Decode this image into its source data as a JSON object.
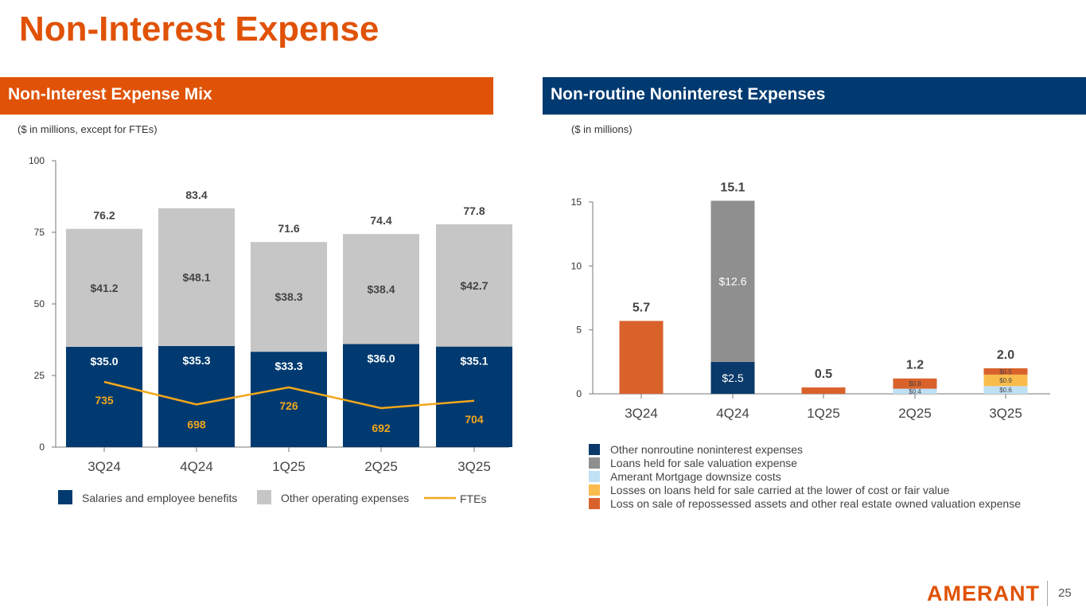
{
  "title": "Non-Interest Expense",
  "left_header": "Non-Interest Expense Mix",
  "right_header": "Non-routine Noninterest Expenses",
  "left_subtitle": "($ in millions, except for FTEs)",
  "right_subtitle": "($ in millions)",
  "logo": "AMERANT",
  "page_number": "25",
  "colors": {
    "orange": "#e05206",
    "navy": "#003a70"
  },
  "chart_data": [
    {
      "type": "bar",
      "stacked": true,
      "categories": [
        "3Q24",
        "4Q24",
        "1Q25",
        "2Q25",
        "3Q25"
      ],
      "ylim": [
        0,
        100
      ],
      "yticks": [
        0,
        25,
        50,
        75,
        100
      ],
      "legend": "bottom",
      "series": [
        {
          "name": "Salaries and employee benefits",
          "color": "#003a70",
          "values": [
            35.0,
            35.3,
            33.3,
            36.0,
            35.1
          ],
          "labels": [
            "$35.0",
            "$35.3",
            "$33.3",
            "$36.0",
            "$35.1"
          ]
        },
        {
          "name": "Other operating expenses",
          "color": "#c6c6c6",
          "values": [
            41.2,
            48.1,
            38.3,
            38.4,
            42.7
          ],
          "labels": [
            "$41.2",
            "$48.1",
            "$38.3",
            "$38.4",
            "$42.7"
          ]
        }
      ],
      "totals": [
        "76.2",
        "83.4",
        "71.6",
        "74.4",
        "77.8"
      ],
      "line": {
        "name": "FTEs",
        "color": "#f2a71b",
        "values": [
          735,
          698,
          726,
          692,
          704
        ]
      }
    },
    {
      "type": "bar",
      "stacked": true,
      "categories": [
        "3Q24",
        "4Q24",
        "1Q25",
        "2Q25",
        "3Q25"
      ],
      "ylim": [
        0,
        15
      ],
      "yticks": [
        0,
        5,
        10,
        15
      ],
      "legend": "bottom",
      "series": [
        {
          "name": "Other nonroutine noninterest expenses",
          "color": "#0a3a6b",
          "values": [
            0,
            2.5,
            0,
            0,
            0
          ],
          "labels": [
            "",
            "$2.5",
            "",
            "",
            ""
          ]
        },
        {
          "name": "Loans held for sale valuation expense",
          "color": "#8f8f8f",
          "values": [
            0,
            12.6,
            0,
            0,
            0
          ],
          "labels": [
            "",
            "$12.6",
            "",
            "",
            ""
          ]
        },
        {
          "name": "Amerant Mortgage downsize costs",
          "color": "#bfe0f5",
          "values": [
            0,
            0,
            0,
            0.4,
            0.6
          ],
          "labels": [
            "",
            "",
            "",
            "$0.4",
            "$0.6"
          ]
        },
        {
          "name": "Losses on loans held for sale carried at the lower of cost or fair value",
          "color": "#f9bc4c",
          "values": [
            0,
            0,
            0,
            0,
            0.9
          ],
          "labels": [
            "",
            "",
            "",
            "",
            "$0.9"
          ]
        },
        {
          "name": "Loss on sale of repossessed assets and other real estate owned valuation expense",
          "color": "#d9622b",
          "values": [
            5.7,
            0,
            0.5,
            0.8,
            0.5
          ],
          "labels": [
            "",
            "",
            "",
            "$0.8",
            "$0.5"
          ]
        }
      ],
      "totals": [
        "5.7",
        "15.1",
        "0.5",
        "1.2",
        "2.0"
      ]
    }
  ]
}
